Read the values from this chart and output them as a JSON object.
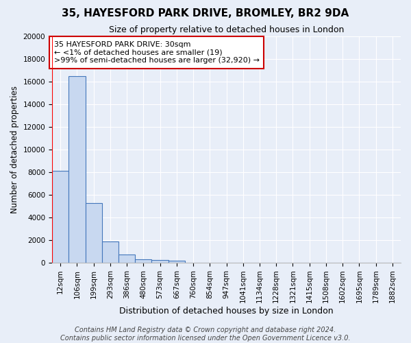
{
  "title": "35, HAYESFORD PARK DRIVE, BROMLEY, BR2 9DA",
  "subtitle": "Size of property relative to detached houses in London",
  "xlabel": "Distribution of detached houses by size in London",
  "ylabel": "Number of detached properties",
  "bar_categories": [
    "12sqm",
    "106sqm",
    "199sqm",
    "293sqm",
    "386sqm",
    "480sqm",
    "573sqm",
    "667sqm",
    "760sqm",
    "854sqm",
    "947sqm",
    "1041sqm",
    "1134sqm",
    "1228sqm",
    "1321sqm",
    "1415sqm",
    "1508sqm",
    "1602sqm",
    "1695sqm",
    "1789sqm",
    "1882sqm"
  ],
  "bar_heights": [
    8100,
    16500,
    5300,
    1850,
    750,
    300,
    250,
    210,
    0,
    0,
    0,
    0,
    0,
    0,
    0,
    0,
    0,
    0,
    0,
    0,
    0
  ],
  "bar_color": "#c8d8f0",
  "bar_edge_color": "#4477bb",
  "background_color": "#e8eef8",
  "grid_color": "#ffffff",
  "ylim": [
    0,
    20000
  ],
  "yticks": [
    0,
    2000,
    4000,
    6000,
    8000,
    10000,
    12000,
    14000,
    16000,
    18000,
    20000
  ],
  "annotation_text": "35 HAYESFORD PARK DRIVE: 30sqm\n← <1% of detached houses are smaller (19)\n>99% of semi-detached houses are larger (32,920) →",
  "annotation_box_color": "#ffffff",
  "annotation_box_edge_color": "#cc0000",
  "footnote": "Contains HM Land Registry data © Crown copyright and database right 2024.\nContains public sector information licensed under the Open Government Licence v3.0.",
  "title_fontsize": 11,
  "subtitle_fontsize": 9,
  "xlabel_fontsize": 9,
  "ylabel_fontsize": 8.5,
  "tick_fontsize": 7.5,
  "annotation_fontsize": 8,
  "footnote_fontsize": 7
}
